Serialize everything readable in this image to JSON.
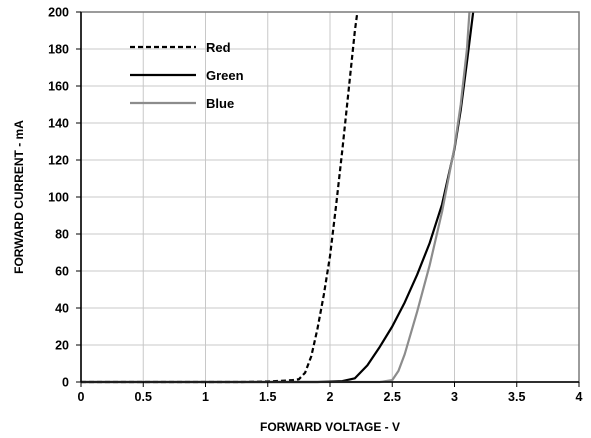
{
  "chart_data": {
    "type": "line",
    "title": "",
    "xlabel": "FORWARD VOLTAGE  - V",
    "ylabel": "FORWARD CURRENT  -  mA",
    "xlim": [
      0,
      4
    ],
    "ylim": [
      0,
      200
    ],
    "x_ticks": [
      0,
      0.5,
      1,
      1.5,
      2,
      2.5,
      3,
      3.5,
      4
    ],
    "x_tick_labels": [
      "0",
      "0.5",
      "1",
      "1.5",
      "2",
      "2.5",
      "3",
      "3.5",
      "4"
    ],
    "y_ticks": [
      0,
      20,
      40,
      60,
      80,
      100,
      120,
      140,
      160,
      180,
      200
    ],
    "y_tick_labels": [
      "0",
      "20",
      "40",
      "60",
      "80",
      "100",
      "120",
      "140",
      "160",
      "180",
      "200"
    ],
    "grid": true,
    "legend_position": "top-left",
    "series": [
      {
        "name": "Red",
        "color": "#000000",
        "dash": "dashed",
        "points": [
          [
            0,
            0
          ],
          [
            1.3,
            0
          ],
          [
            1.5,
            0.3
          ],
          [
            1.6,
            0.6
          ],
          [
            1.7,
            1
          ],
          [
            1.75,
            1.5
          ],
          [
            1.8,
            5
          ],
          [
            1.85,
            14
          ],
          [
            1.9,
            29
          ],
          [
            1.95,
            47
          ],
          [
            2.0,
            68
          ],
          [
            2.05,
            96
          ],
          [
            2.1,
            126
          ],
          [
            2.15,
            158
          ],
          [
            2.2,
            190
          ],
          [
            2.22,
            200
          ]
        ]
      },
      {
        "name": "Green",
        "color": "#000000",
        "dash": "solid",
        "points": [
          [
            0,
            0
          ],
          [
            1.9,
            0
          ],
          [
            2.1,
            0.5
          ],
          [
            2.2,
            2
          ],
          [
            2.3,
            9
          ],
          [
            2.4,
            19
          ],
          [
            2.5,
            30
          ],
          [
            2.6,
            43
          ],
          [
            2.7,
            58
          ],
          [
            2.8,
            75
          ],
          [
            2.9,
            96
          ],
          [
            3.0,
            126
          ],
          [
            3.05,
            147
          ],
          [
            3.1,
            173
          ],
          [
            3.15,
            200
          ]
        ]
      },
      {
        "name": "Blue",
        "color": "#8c8c8c",
        "dash": "solid",
        "points": [
          [
            0,
            0
          ],
          [
            2.4,
            0
          ],
          [
            2.5,
            1
          ],
          [
            2.55,
            6
          ],
          [
            2.6,
            15
          ],
          [
            2.7,
            38
          ],
          [
            2.8,
            63
          ],
          [
            2.9,
            92
          ],
          [
            3.0,
            127
          ],
          [
            3.05,
            150
          ],
          [
            3.1,
            180
          ],
          [
            3.12,
            200
          ]
        ]
      }
    ]
  }
}
